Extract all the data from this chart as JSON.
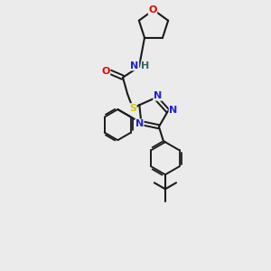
{
  "background_color": "#ebebeb",
  "bond_color": "#1a1a1a",
  "atom_colors": {
    "O": "#ee0000",
    "N": "#2222cc",
    "S": "#cccc00",
    "H": "#336666",
    "C": "#1a1a1a"
  },
  "figsize": [
    3.0,
    3.0
  ],
  "dpi": 100
}
